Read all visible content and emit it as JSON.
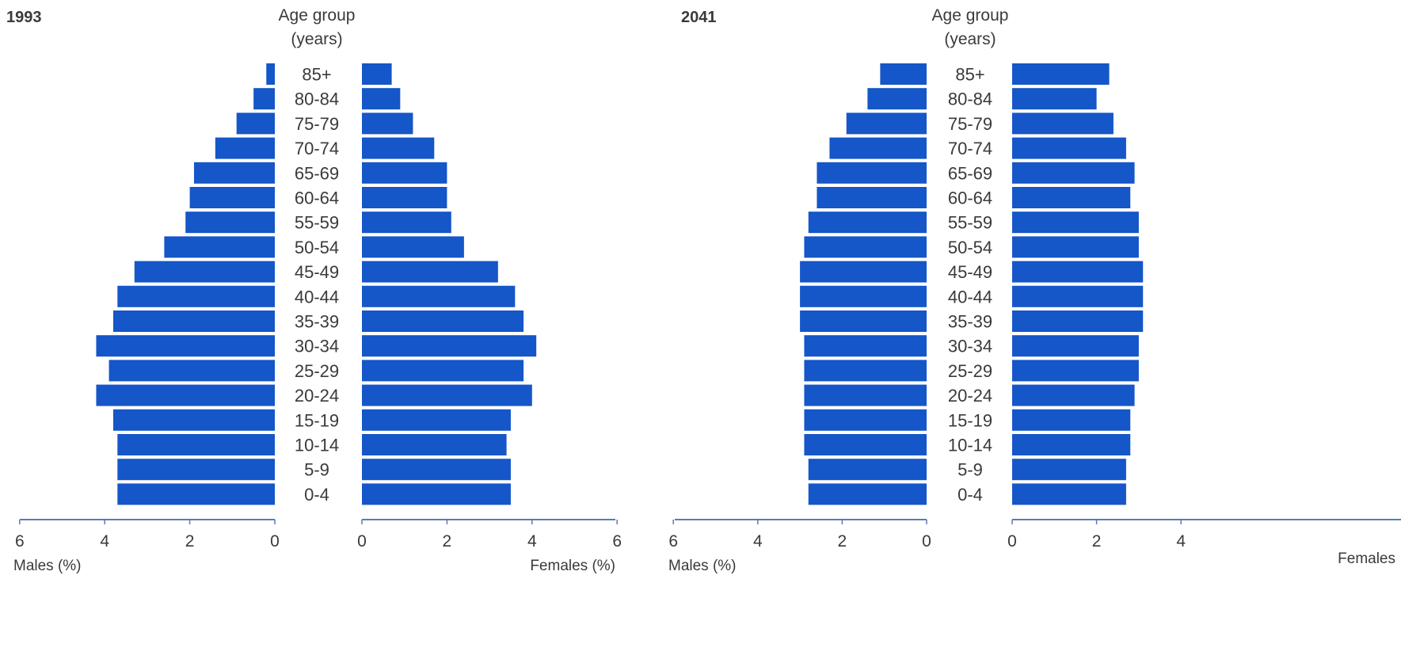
{
  "chart_data": [
    {
      "type": "bar",
      "title": "1993",
      "center_label": "Age group",
      "center_sublabel": "(years)",
      "categories": [
        "85+",
        "80-84",
        "75-79",
        "70-74",
        "65-69",
        "60-64",
        "55-59",
        "50-54",
        "45-49",
        "40-44",
        "35-39",
        "30-34",
        "25-29",
        "20-24",
        "15-19",
        "10-14",
        "5-9",
        "0-4"
      ],
      "series": [
        {
          "name": "Males (%)",
          "side": "left",
          "values": [
            0.2,
            0.5,
            0.9,
            1.4,
            1.9,
            2.0,
            2.1,
            2.6,
            3.3,
            3.7,
            3.8,
            4.2,
            3.9,
            4.2,
            3.8,
            3.7,
            3.7,
            3.7
          ]
        },
        {
          "name": "Females (%)",
          "side": "right",
          "values": [
            0.7,
            0.9,
            1.2,
            1.7,
            2.0,
            2.0,
            2.1,
            2.4,
            3.2,
            3.6,
            3.8,
            4.1,
            3.8,
            4.0,
            3.5,
            3.4,
            3.5,
            3.5
          ]
        }
      ],
      "left_ticks": [
        "6",
        "4",
        "2",
        "0"
      ],
      "right_ticks": [
        "0",
        "2",
        "4",
        "6"
      ],
      "xlim": [
        0,
        6
      ],
      "xlabel_left": "Males (%)",
      "xlabel_right": "Females (%)"
    },
    {
      "type": "bar",
      "title": "2041",
      "center_label": "Age group",
      "center_sublabel": "(years)",
      "categories": [
        "85+",
        "80-84",
        "75-79",
        "70-74",
        "65-69",
        "60-64",
        "55-59",
        "50-54",
        "45-49",
        "40-44",
        "35-39",
        "30-34",
        "25-29",
        "20-24",
        "15-19",
        "10-14",
        "5-9",
        "0-4"
      ],
      "series": [
        {
          "name": "Males (%)",
          "side": "left",
          "values": [
            1.1,
            1.4,
            1.9,
            2.3,
            2.6,
            2.6,
            2.8,
            2.9,
            3.0,
            3.0,
            3.0,
            2.9,
            2.9,
            2.9,
            2.9,
            2.9,
            2.8,
            2.8
          ]
        },
        {
          "name": "Females",
          "side": "right",
          "values": [
            2.3,
            2.0,
            2.4,
            2.7,
            2.9,
            2.8,
            3.0,
            3.0,
            3.1,
            3.1,
            3.1,
            3.0,
            3.0,
            2.9,
            2.8,
            2.8,
            2.7,
            2.7
          ]
        }
      ],
      "left_ticks": [
        "6",
        "4",
        "2",
        "0"
      ],
      "right_ticks": [
        "0",
        "2",
        "4"
      ],
      "xlim": [
        0,
        6
      ],
      "xlabel_left": "Males (%)",
      "xlabel_right": "Females"
    }
  ]
}
